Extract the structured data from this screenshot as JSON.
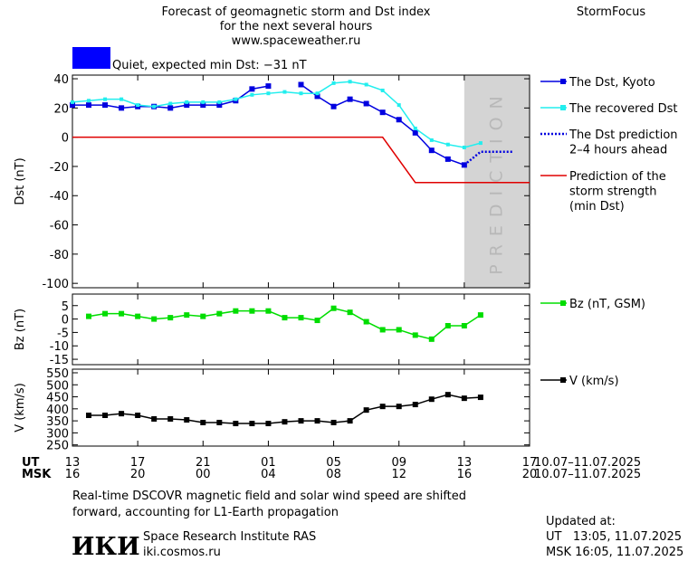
{
  "header": {
    "title_lines": [
      "Forecast of geomagnetic storm and Dst index",
      "for the next several hours",
      "www.spaceweather.ru"
    ],
    "brand": "StormFocus",
    "status": {
      "label": "Quiet, expected min Dst: −31 nT",
      "color": "#0000ff"
    }
  },
  "chart_data": [
    {
      "type": "line",
      "ylabel": "Dst (nT)",
      "xlim": [
        0,
        28
      ],
      "ylim": [
        -103,
        42.5
      ],
      "yticks": [
        40,
        20,
        0,
        -20,
        -40,
        -60,
        -80,
        -100
      ],
      "grid": false,
      "shaded_region": {
        "xlim": [
          24,
          28
        ],
        "label": "PREDICTION",
        "color": "#d4d4d4"
      },
      "series": [
        {
          "name": [
            "The Dst, Kyoto"
          ],
          "color": "#0000e0",
          "marker": "square",
          "dash": "solid",
          "x": [
            0,
            1,
            2,
            3,
            4,
            5,
            6,
            7,
            8,
            9,
            10,
            11,
            12,
            13,
            14,
            15,
            16,
            17,
            18,
            19,
            20,
            21,
            22,
            23,
            24
          ],
          "values": [
            22,
            22,
            22,
            20,
            21,
            21,
            20,
            22,
            22,
            22,
            25,
            33,
            35,
            null,
            36,
            28,
            21,
            26,
            23,
            17,
            12,
            3,
            -9,
            -15,
            -19
          ]
        },
        {
          "name": [
            "The recovered Dst"
          ],
          "color": "#22eeee",
          "marker": "small-square",
          "dash": "solid",
          "x": [
            0,
            1,
            2,
            3,
            4,
            5,
            6,
            7,
            8,
            9,
            10,
            11,
            12,
            13,
            14,
            15,
            16,
            17,
            18,
            19,
            20,
            21,
            22,
            23,
            24,
            25
          ],
          "values": [
            24,
            25,
            26,
            26,
            22,
            21,
            23,
            24,
            24,
            24,
            26,
            29,
            30,
            31,
            30,
            30,
            37,
            38,
            36,
            32,
            22,
            6,
            -2,
            -5,
            -7,
            -4
          ]
        },
        {
          "name": [
            "The Dst prediction",
            "2–4 hours ahead"
          ],
          "color": "#0000e0",
          "marker": "none",
          "dash": "dotted",
          "x": [
            24,
            25,
            27
          ],
          "values": [
            -19,
            -10,
            -10
          ]
        },
        {
          "name": [
            "Prediction of the",
            "storm strength",
            "(min Dst)"
          ],
          "color": "#e00000",
          "marker": "none",
          "dash": "solid",
          "x": [
            0,
            19,
            21,
            28
          ],
          "values": [
            0,
            0,
            -31,
            -31
          ]
        }
      ]
    },
    {
      "type": "line",
      "ylabel": "Bz (nT)",
      "xlim": [
        0,
        28
      ],
      "ylim": [
        -17,
        9.3
      ],
      "yticks": [
        5,
        0,
        -5,
        -10,
        -15
      ],
      "grid": false,
      "series": [
        {
          "name": [
            "Bz (nT, GSM)"
          ],
          "color": "#00dd00",
          "marker": "square",
          "dash": "solid",
          "x": [
            1,
            2,
            3,
            4,
            5,
            6,
            7,
            8,
            9,
            10,
            11,
            12,
            13,
            14,
            15,
            16,
            17,
            18,
            19,
            20,
            21,
            22,
            23,
            24,
            25
          ],
          "values": [
            1,
            2,
            2,
            1,
            0,
            0.5,
            1.5,
            1,
            2,
            3,
            3,
            3,
            0.5,
            0.5,
            -0.5,
            4,
            2.5,
            -1,
            -4,
            -4,
            -6,
            -7.5,
            -2.5,
            -2.5,
            1.5
          ]
        }
      ]
    },
    {
      "type": "line",
      "ylabel": "V (km/s)",
      "xlim": [
        0,
        28
      ],
      "ylim": [
        245,
        565
      ],
      "yticks": [
        550,
        500,
        450,
        400,
        350,
        300,
        250
      ],
      "grid": false,
      "series": [
        {
          "name": [
            "V (km/s)"
          ],
          "color": "#000000",
          "marker": "square",
          "dash": "solid",
          "x": [
            1,
            2,
            3,
            4,
            5,
            6,
            7,
            8,
            9,
            10,
            11,
            12,
            13,
            14,
            15,
            16,
            17,
            18,
            19,
            20,
            21,
            22,
            23,
            24,
            25
          ],
          "values": [
            373,
            373,
            380,
            373,
            358,
            358,
            354,
            343,
            343,
            339,
            339,
            339,
            346,
            350,
            350,
            343,
            350,
            395,
            410,
            410,
            418,
            440,
            459,
            444,
            448
          ]
        }
      ],
      "x_axis_names": [
        "UT",
        "MSK"
      ],
      "xticks": [
        {
          "value": 0,
          "label": "13"
        },
        {
          "value": 4,
          "label": "17"
        },
        {
          "value": 8,
          "label": "21"
        },
        {
          "value": 12,
          "label": "01"
        },
        {
          "value": 16,
          "label": "05"
        },
        {
          "value": 20,
          "label": "09"
        },
        {
          "value": 24,
          "label": "13"
        },
        {
          "value": 28,
          "label": "17"
        }
      ],
      "x2ticks": [
        {
          "value": 0,
          "label": "16"
        },
        {
          "value": 4,
          "label": "20"
        },
        {
          "value": 8,
          "label": "00"
        },
        {
          "value": 12,
          "label": "04"
        },
        {
          "value": 16,
          "label": "08"
        },
        {
          "value": 20,
          "label": "12"
        },
        {
          "value": 24,
          "label": "16"
        },
        {
          "value": 28,
          "label": "20"
        }
      ],
      "x_range_labels": [
        "10.07–11.07.2025",
        "10.07–11.07.2025"
      ]
    }
  ],
  "footer": {
    "note_lines": [
      "Real-time DSCOVR magnetic field and solar wind speed are shifted",
      "forward, accounting for L1-Earth propagation"
    ],
    "logo": "ИКИ",
    "institute": "Space Research Institute RAS",
    "website": "iki.cosmos.ru",
    "updated_label": "Updated at:",
    "updated_ut": "UT   13:05, 11.07.2025",
    "updated_msk": "MSK 16:05, 11.07.2025"
  }
}
